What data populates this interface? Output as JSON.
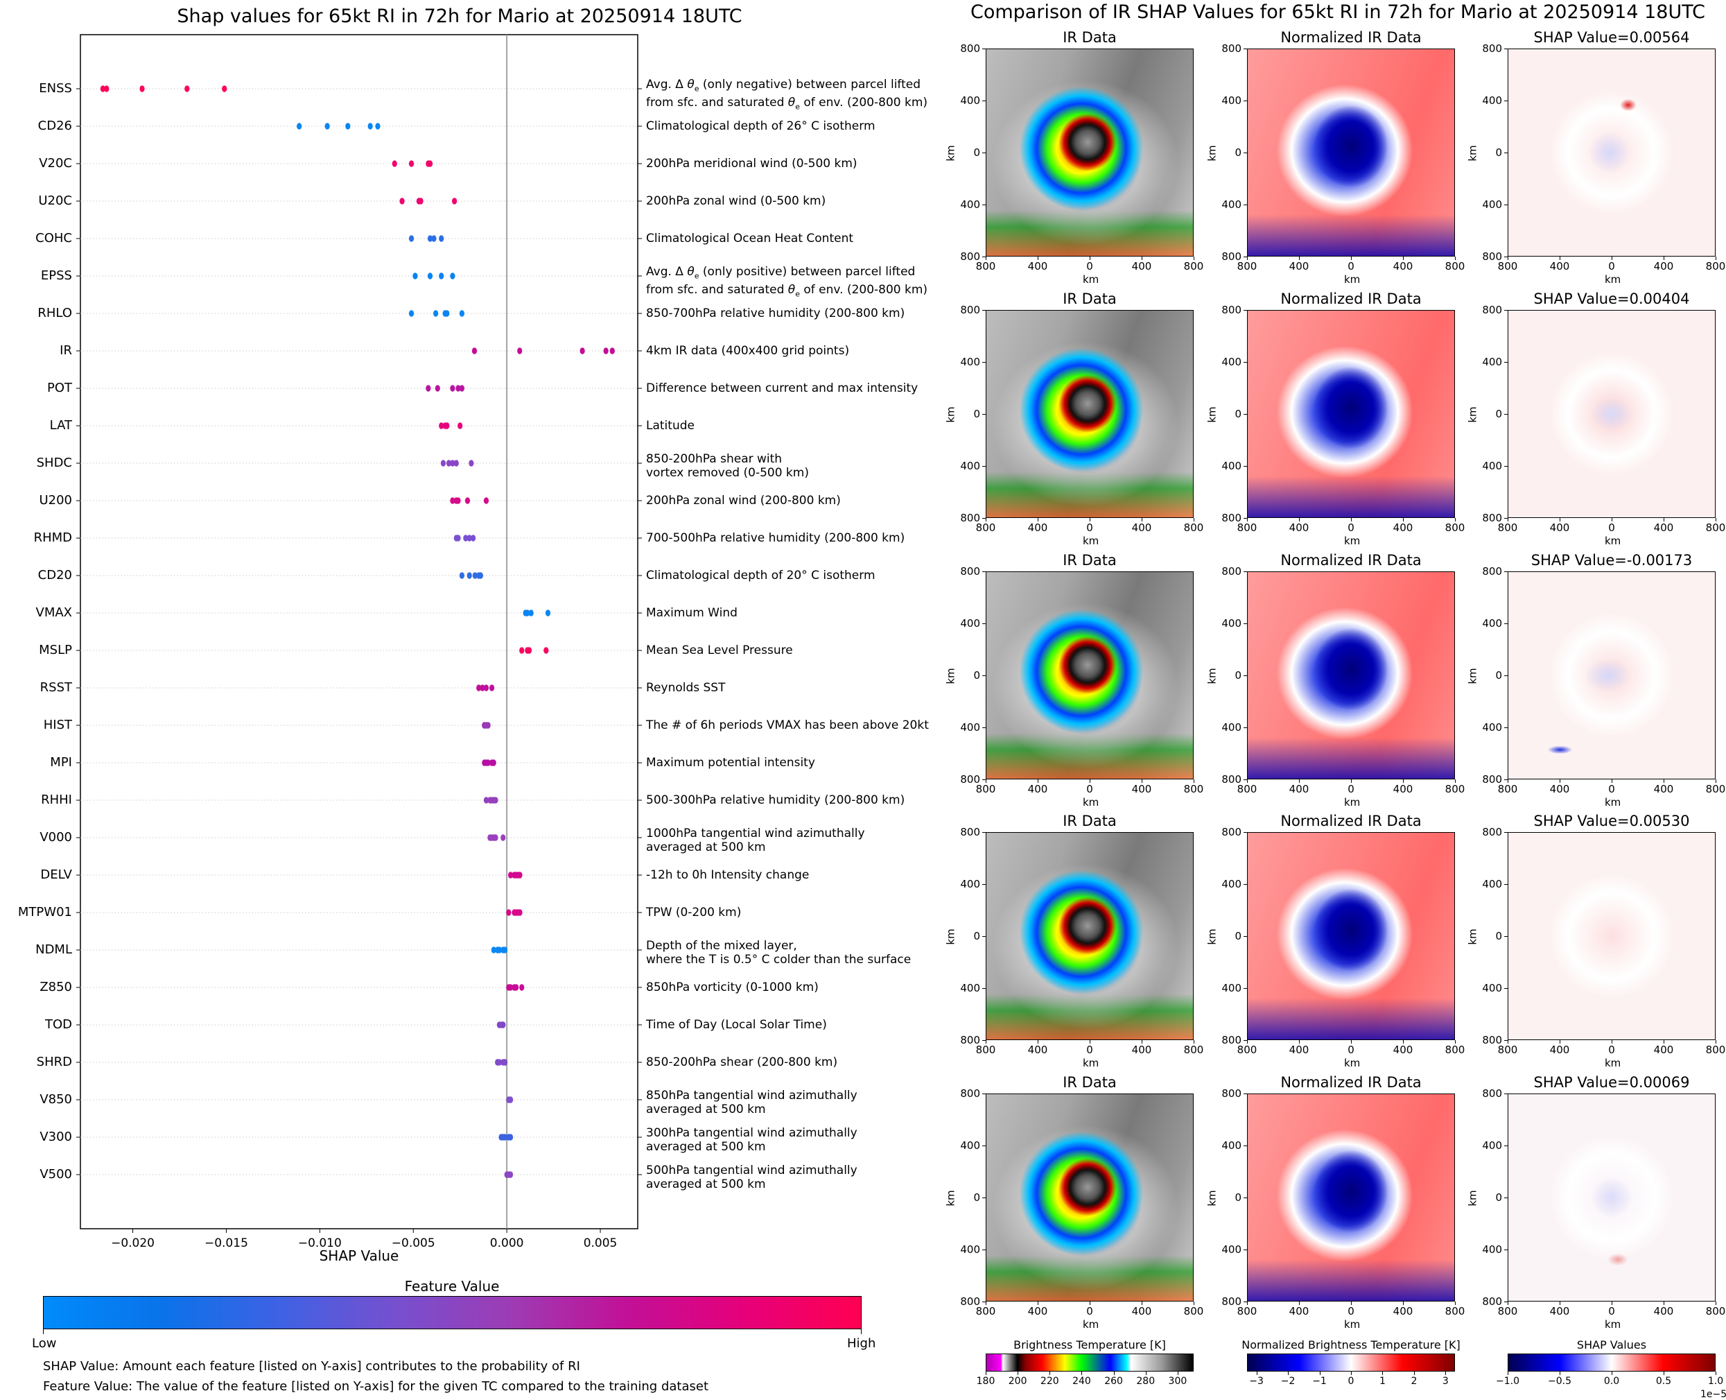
{
  "left_title": "Shap values for 65kt RI in 72h for Mario at 20250914 18UTC",
  "right_title": "Comparison of IR SHAP Values for 65kt RI in 72h for Mario at 20250914 18UTC",
  "chart_data": [
    {
      "type": "scatter",
      "title": "Shap values for 65kt RI in 72h for Mario at 20250914 18UTC",
      "xlabel": "SHAP Value",
      "ylabel": "",
      "xlim": [
        -0.0228,
        0.007
      ],
      "xticks": [
        -0.02,
        -0.015,
        -0.01,
        -0.005,
        0.0,
        0.005
      ],
      "xtick_labels": [
        "−0.020",
        "−0.015",
        "−0.010",
        "−0.005",
        "0.000",
        "0.005"
      ],
      "zero_line": true,
      "grid": "horizontal dotted",
      "colorbar": {
        "title": "Feature Value",
        "low_label": "Low",
        "high_label": "High",
        "colors": [
          "#008bfb",
          "#0a73ea",
          "#3d62e4",
          "#7650cf",
          "#9d3cb4",
          "#c21097",
          "#e6007a",
          "#ff0052"
        ]
      },
      "features": [
        {
          "name": "ENSS",
          "description": "Avg. Δ θe (only negative) between parcel lifted\nfrom sfc. and saturated θe of env. (200-800 km)",
          "shap": [
            -0.0216,
            -0.0214,
            -0.0195,
            -0.0171,
            -0.0151
          ],
          "color": "#ff0558"
        },
        {
          "name": "CD26",
          "description": "Climatological depth of 26° C isotherm",
          "shap": [
            -0.0111,
            -0.0096,
            -0.0085,
            -0.0073,
            -0.0069
          ],
          "color": "#0a86f3"
        },
        {
          "name": "V20C",
          "description": "200hPa meridional wind (0-500 km)",
          "shap": [
            -0.006,
            -0.0051,
            -0.0042,
            -0.0041
          ],
          "color": "#f2056b"
        },
        {
          "name": "U20C",
          "description": "200hPa zonal wind (0-500 km)",
          "shap": [
            -0.0056,
            -0.0047,
            -0.0046,
            -0.0028
          ],
          "color": "#ee0570"
        },
        {
          "name": "COHC",
          "description": "Climatological Ocean Heat Content",
          "shap": [
            -0.0051,
            -0.0041,
            -0.0039,
            -0.0035
          ],
          "color": "#2a6fe6"
        },
        {
          "name": "EPSS",
          "description": "Avg. Δ θe (only positive) between parcel lifted\nfrom sfc. and saturated θe of env. (200-800 km)",
          "shap": [
            -0.0049,
            -0.0041,
            -0.0035,
            -0.0029
          ],
          "color": "#0a82f2"
        },
        {
          "name": "RHLO",
          "description": "850-700hPa relative humidity (200-800 km)",
          "shap": [
            -0.0051,
            -0.0038,
            -0.0033,
            -0.0032,
            -0.0024
          ],
          "color": "#0a85f3"
        },
        {
          "name": "IR",
          "description": "4km IR data (400x400 grid points)",
          "shap": [
            -0.00173,
            0.00069,
            0.00404,
            0.0053,
            0.00564
          ],
          "color": "#c20d96"
        },
        {
          "name": "POT",
          "description": "Difference between current and max intensity",
          "shap": [
            -0.0042,
            -0.0037,
            -0.0029,
            -0.0026,
            -0.0024
          ],
          "color": "#b915a2"
        },
        {
          "name": "LAT",
          "description": "Latitude",
          "shap": [
            -0.0035,
            -0.0033,
            -0.0032,
            -0.0032,
            -0.0025
          ],
          "color": "#e5047c"
        },
        {
          "name": "SHDC",
          "description": "850-200hPa shear with\nvortex removed (0-500 km)",
          "shap": [
            -0.0034,
            -0.0031,
            -0.0029,
            -0.0027,
            -0.0019
          ],
          "color": "#8a46c6"
        },
        {
          "name": "U200",
          "description": "200hPa zonal wind (200-800 km)",
          "shap": [
            -0.0029,
            -0.0027,
            -0.0026,
            -0.0021,
            -0.0011
          ],
          "color": "#d70a8a"
        },
        {
          "name": "RHMD",
          "description": "700-500hPa relative humidity (200-800 km)",
          "shap": [
            -0.0027,
            -0.0026,
            -0.0022,
            -0.002,
            -0.0018
          ],
          "color": "#7a50d2"
        },
        {
          "name": "CD20",
          "description": "Climatological depth of 20° C isotherm",
          "shap": [
            -0.0024,
            -0.002,
            -0.0017,
            -0.0015,
            -0.0014
          ],
          "color": "#2f6de5"
        },
        {
          "name": "VMAX",
          "description": "Maximum Wind",
          "shap": [
            0.001,
            0.0011,
            0.0013,
            0.0022
          ],
          "color": "#0a86f3"
        },
        {
          "name": "MSLP",
          "description": "Mean Sea Level Pressure",
          "shap": [
            0.0008,
            0.0011,
            0.0012,
            0.0021
          ],
          "color": "#fa0560"
        },
        {
          "name": "RSST",
          "description": "Reynolds SST",
          "shap": [
            -0.0015,
            -0.0013,
            -0.0011,
            -0.0008
          ],
          "color": "#c0109a"
        },
        {
          "name": "HIST",
          "description": "The # of 6h periods VMAX has been above 20kt",
          "shap": [
            -0.0012,
            -0.0012,
            -0.0011,
            -0.0011,
            -0.001
          ],
          "color": "#9a38b8"
        },
        {
          "name": "MPI",
          "description": "Maximum potential intensity",
          "shap": [
            -0.0012,
            -0.0011,
            -0.001,
            -0.0008,
            -0.0007
          ],
          "color": "#b70fa4"
        },
        {
          "name": "RHHI",
          "description": "500-300hPa relative humidity (200-800 km)",
          "shap": [
            -0.0011,
            -0.0009,
            -0.0008,
            -0.0007,
            -0.0006
          ],
          "color": "#9441be"
        },
        {
          "name": "V000",
          "description": "1000hPa tangential wind azimuthally\naveraged at 500 km",
          "shap": [
            -0.0009,
            -0.0008,
            -0.0007,
            -0.0006,
            -0.0002
          ],
          "color": "#9a40bd"
        },
        {
          "name": "DELV",
          "description": "-12h to 0h Intensity change",
          "shap": [
            0.0002,
            0.0004,
            0.0005,
            0.0006,
            0.0007
          ],
          "color": "#d2088e"
        },
        {
          "name": "MTPW01",
          "description": "TPW (0-200 km)",
          "shap": [
            0.0001,
            0.0004,
            0.0005,
            0.0006,
            0.0007
          ],
          "color": "#d9078a"
        },
        {
          "name": "NDML",
          "description": "Depth of the mixed layer,\nwhere the T is 0.5° C colder than the surface",
          "shap": [
            -0.0007,
            -0.0005,
            -0.0004,
            -0.0002,
            -0.0001
          ],
          "color": "#0a88f4"
        },
        {
          "name": "Z850",
          "description": "850hPa vorticity (0-1000 km)",
          "shap": [
            0.0001,
            0.0002,
            0.0004,
            0.0005,
            0.0008
          ],
          "color": "#c90b96"
        },
        {
          "name": "TOD",
          "description": "Time of Day (Local Solar Time)",
          "shap": [
            -0.0004,
            -0.0003,
            -0.0002,
            -0.0002
          ],
          "color": "#8247c8"
        },
        {
          "name": "SHRD",
          "description": "850-200hPa shear (200-800 km)",
          "shap": [
            -0.0005,
            -0.0004,
            -0.0002,
            -0.0001,
            -0.0001
          ],
          "color": "#7f4cca"
        },
        {
          "name": "V850",
          "description": "850hPa tangential wind azimuthally\naveraged at 500 km",
          "shap": [
            0.0001,
            0.0001,
            0.0002,
            0.0002
          ],
          "color": "#8150cb"
        },
        {
          "name": "V300",
          "description": "300hPa tangential wind azimuthally\naveraged at 500 km",
          "shap": [
            -0.0003,
            -0.0002,
            -0.0001,
            0.0001,
            0.0002
          ],
          "color": "#3b63e1"
        },
        {
          "name": "V500",
          "description": "500hPa tangential wind azimuthally\naveraged at 500 km",
          "shap": [
            0.0,
            0.0001,
            0.0001,
            0.0002
          ],
          "color": "#8d45c2"
        }
      ]
    },
    {
      "type": "heatmap",
      "title": "Comparison of IR SHAP Values for 65kt RI in 72h for Mario at 20250914 18UTC",
      "column_titles": [
        "IR Data",
        "Normalized IR Data",
        "SHAP Value"
      ],
      "xlabel": "km",
      "ylabel": "km",
      "axis_ticks": [
        "800",
        "400",
        "0",
        "400",
        "800"
      ],
      "shap_values": [
        0.00564,
        0.00404,
        -0.00173,
        0.0053,
        0.00069
      ],
      "shap_titles": [
        "SHAP Value=0.00564",
        "SHAP Value=0.00404",
        "SHAP Value=-0.00173",
        "SHAP Value=0.00530",
        "SHAP Value=0.00069"
      ],
      "colorbars": [
        {
          "title": "Brightness Temperature [K]",
          "ticks": [
            "180",
            "200",
            "220",
            "240",
            "260",
            "280",
            "300"
          ],
          "range": [
            180,
            310
          ]
        },
        {
          "title": "Normalized Brightness Temperature [K]",
          "ticks": [
            "−3",
            "−2",
            "−1",
            "0",
            "1",
            "2",
            "3"
          ],
          "range": [
            -3.3,
            3.3
          ]
        },
        {
          "title": "SHAP Values",
          "ticks": [
            "−1.0",
            "−0.5",
            "0.0",
            "0.5",
            "1.0"
          ],
          "range": [
            -1.0,
            1.0
          ],
          "offset_label": "1e−5"
        }
      ]
    }
  ],
  "notes": {
    "shap_value": "SHAP Value: Amount each feature [listed on Y-axis] contributes to the probability of RI",
    "feature_value": "Feature Value: The value of the feature [listed on Y-axis] for the given TC compared to the training dataset"
  }
}
